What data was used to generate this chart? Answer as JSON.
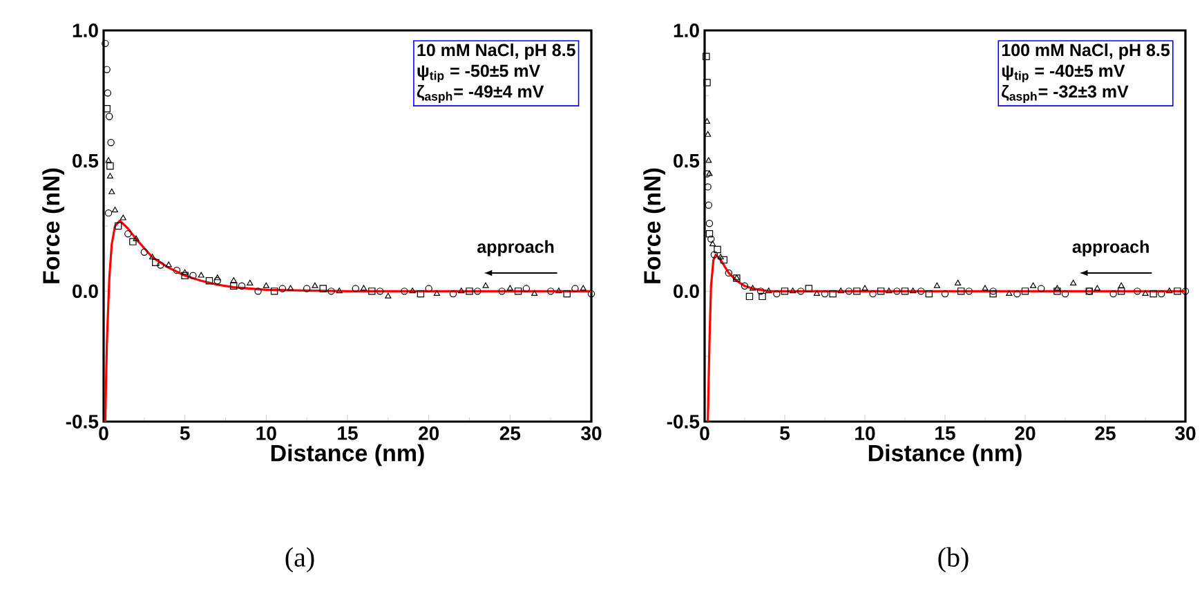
{
  "chart_data": [
    {
      "type": "scatter",
      "title": "(a)",
      "xlabel": "Distance (nm)",
      "ylabel": "Force (nN)",
      "xlim": [
        0,
        30
      ],
      "ylim": [
        -0.5,
        1.0
      ],
      "xticks": [
        0,
        5,
        10,
        15,
        20,
        25,
        30
      ],
      "yticks": [
        {
          "value": -0.5,
          "label": "-0.5"
        },
        {
          "value": 0,
          "label": "0.0"
        },
        {
          "value": 0.5,
          "label": "0.5"
        },
        {
          "value": 1.0,
          "label": "1.0"
        }
      ],
      "annotations": [
        "10 mM NaCl, pH 8.5",
        "ψ$_{tip}$ = -50±5 mV",
        "ζ$_{asph}$= -49±4 mV",
        "approach"
      ],
      "series": [
        {
          "color": "#000000",
          "marker": "circle",
          "x": [
            0.1,
            0.2,
            0.25,
            0.35,
            0.45,
            0.3,
            1.5,
            2.5,
            3.5,
            4.5,
            5.5,
            7,
            8.5,
            9.5,
            11,
            12.5,
            14,
            15.5,
            17,
            18.5,
            20,
            21.5,
            23,
            24.5,
            26,
            27.5,
            29,
            30
          ],
          "values": [
            0.95,
            0.85,
            0.76,
            0.67,
            0.57,
            0.3,
            0.22,
            0.15,
            0.1,
            0.08,
            0.06,
            0.04,
            0.02,
            0.0,
            0.01,
            0.01,
            0.0,
            0.01,
            0.0,
            0.0,
            0.01,
            -0.01,
            0.0,
            0.0,
            0.01,
            0.0,
            0.01,
            -0.01
          ]
        },
        {
          "color": "#000000",
          "marker": "triangle",
          "x": [
            0.3,
            0.4,
            0.5,
            0.7,
            1.2,
            2,
            3,
            4,
            5,
            6,
            7,
            8,
            9,
            10,
            11.5,
            13,
            14.5,
            16,
            17.5,
            19,
            20.5,
            22,
            23.5,
            25,
            26.5,
            28,
            29.5
          ],
          "values": [
            0.5,
            0.44,
            0.38,
            0.31,
            0.28,
            0.2,
            0.13,
            0.1,
            0.07,
            0.06,
            0.05,
            0.04,
            0.03,
            0.02,
            0.01,
            0.02,
            0.0,
            0.01,
            -0.02,
            0.0,
            -0.01,
            0.0,
            0.02,
            0.01,
            -0.01,
            0.0,
            0.01
          ]
        },
        {
          "color": "#000000",
          "marker": "square",
          "x": [
            0.2,
            0.4,
            0.9,
            1.8,
            3.2,
            5,
            6.5,
            8,
            10.5,
            13.5,
            16.5,
            19.5,
            22.5,
            25.5,
            28.5
          ],
          "values": [
            0.7,
            0.48,
            0.25,
            0.19,
            0.11,
            0.06,
            0.04,
            0.02,
            0.0,
            0.01,
            0.0,
            -0.01,
            0.0,
            0.0,
            -0.01
          ]
        },
        {
          "type": "line",
          "color": "#ff0000",
          "marker": "none",
          "x": [
            0.1,
            0.2,
            0.35,
            0.5,
            0.7,
            1.0,
            1.5,
            2,
            3,
            4,
            5,
            6,
            7,
            8,
            10,
            15,
            30
          ],
          "values": [
            -0.5,
            -0.2,
            0.05,
            0.18,
            0.25,
            0.27,
            0.24,
            0.2,
            0.13,
            0.09,
            0.06,
            0.04,
            0.025,
            0.015,
            0.005,
            0,
            0
          ]
        }
      ]
    },
    {
      "type": "scatter",
      "title": "(b)",
      "xlabel": "Distance (nm)",
      "ylabel": "Force (nN)",
      "xlim": [
        0,
        30
      ],
      "ylim": [
        -0.5,
        1.0
      ],
      "xticks": [
        0,
        5,
        10,
        15,
        20,
        25,
        30
      ],
      "yticks": [
        {
          "value": -0.5,
          "label": "-0.5"
        },
        {
          "value": 0,
          "label": "0.0"
        },
        {
          "value": 0.5,
          "label": "0.5"
        },
        {
          "value": 1.0,
          "label": "1.0"
        }
      ],
      "annotations": [
        "100 mM NaCl, pH 8.5",
        "ψ$_{tip}$ = -40±5 mV",
        "ζ$_{asph}$= -32±3 mV",
        "approach"
      ],
      "series": [
        {
          "color": "#000000",
          "marker": "circle",
          "x": [
            0.15,
            0.2,
            0.25,
            0.3,
            0.4,
            0.6,
            1.5,
            2.5,
            3.5,
            4.5,
            6,
            7.5,
            9,
            10.5,
            12,
            13.5,
            15,
            16.5,
            18,
            19.5,
            21,
            22.5,
            24,
            25.5,
            27,
            28.5,
            30
          ],
          "values": [
            0.45,
            0.4,
            0.33,
            0.26,
            0.2,
            0.14,
            0.07,
            0.02,
            0.0,
            -0.01,
            0.0,
            -0.01,
            0.0,
            -0.01,
            0.0,
            0.0,
            -0.01,
            0.0,
            0.0,
            -0.01,
            0.01,
            -0.01,
            0.0,
            -0.01,
            0.0,
            -0.01,
            0.0
          ]
        },
        {
          "color": "#000000",
          "marker": "triangle",
          "x": [
            0.15,
            0.2,
            0.25,
            0.3,
            0.5,
            1,
            2,
            3,
            4,
            5.5,
            7,
            8.5,
            10,
            11.5,
            13,
            14.5,
            15.8,
            17.5,
            19,
            20.5,
            22,
            23,
            24.5,
            26,
            27.5,
            29
          ],
          "values": [
            0.65,
            0.6,
            0.5,
            0.45,
            0.18,
            0.13,
            0.05,
            0.01,
            0.0,
            0.0,
            -0.01,
            0.0,
            0.01,
            0.0,
            0.0,
            0.02,
            0.03,
            0.01,
            -0.01,
            0.02,
            0.01,
            0.03,
            0.01,
            0.02,
            -0.01,
            0.0
          ]
        },
        {
          "color": "#000000",
          "marker": "square",
          "x": [
            0.1,
            0.15,
            0.3,
            0.8,
            1.2,
            2,
            2.8,
            3.6,
            5,
            6.5,
            8,
            9.5,
            11,
            12.5,
            14,
            16,
            18,
            20,
            22,
            24,
            26,
            28,
            29.5
          ],
          "values": [
            0.9,
            0.8,
            0.22,
            0.16,
            0.12,
            0.05,
            -0.02,
            -0.02,
            0.0,
            0.01,
            -0.01,
            0.0,
            0.0,
            0.0,
            -0.01,
            0.0,
            -0.01,
            0.0,
            0.0,
            0.0,
            0.0,
            -0.01,
            0.0
          ]
        },
        {
          "type": "line",
          "color": "#ff0000",
          "marker": "none",
          "x": [
            0.2,
            0.3,
            0.4,
            0.55,
            0.7,
            1.0,
            1.5,
            2,
            2.5,
            3,
            4,
            30
          ],
          "values": [
            -0.5,
            -0.2,
            0.02,
            0.12,
            0.14,
            0.12,
            0.07,
            0.04,
            0.02,
            0.01,
            0.0,
            0.0
          ]
        }
      ]
    }
  ]
}
